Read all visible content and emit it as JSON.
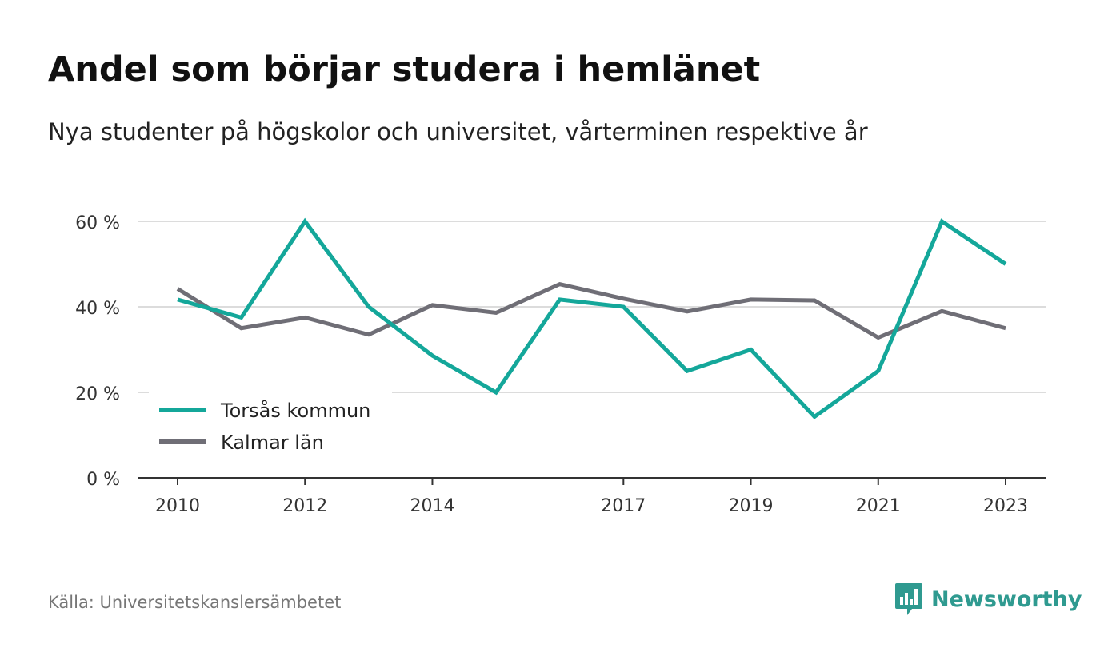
{
  "header": {
    "title": "Andel som börjar studera i hemlänet",
    "subtitle": "Nya studenter på högskolor och universitet, vårterminen respektive år"
  },
  "footer": {
    "source": "Källa: Universitetskanslersämbetet",
    "brand": "Newsworthy",
    "brand_icon": "bar-chart-speech-bubble-icon"
  },
  "colors": {
    "series_1": "#14a79a",
    "series_2": "#6f6e76",
    "grid": "#dcdcdc",
    "axis": "#333333",
    "brand": "#2f9a90"
  },
  "chart_data": {
    "type": "line",
    "title": "Andel som börjar studera i hemlänet",
    "subtitle": "Nya studenter på högskolor och universitet, vårterminen respektive år",
    "xlabel": "",
    "ylabel": "",
    "x": [
      2010,
      2011,
      2012,
      2013,
      2014,
      2015,
      2016,
      2017,
      2018,
      2019,
      2020,
      2021,
      2022,
      2023
    ],
    "xticks": [
      "2010",
      "2012",
      "2014",
      "2017",
      "2019",
      "2021",
      "2023"
    ],
    "yticks": [
      "0 %",
      "20 %",
      "40 %",
      "60 %"
    ],
    "ytick_values": [
      0,
      20,
      40,
      60
    ],
    "ylim": [
      0,
      60
    ],
    "grid": true,
    "legend_position": "bottom-left",
    "series": [
      {
        "name": "Torsås kommun",
        "values": [
          41.7,
          37.5,
          60,
          40,
          28.6,
          20,
          41.7,
          40,
          25,
          30,
          14.3,
          25,
          60,
          50
        ]
      },
      {
        "name": "Kalmar län",
        "values": [
          44.2,
          35,
          37.5,
          33.5,
          40.4,
          38.6,
          45.3,
          41.9,
          38.9,
          41.7,
          41.5,
          32.8,
          39,
          35
        ]
      }
    ]
  }
}
